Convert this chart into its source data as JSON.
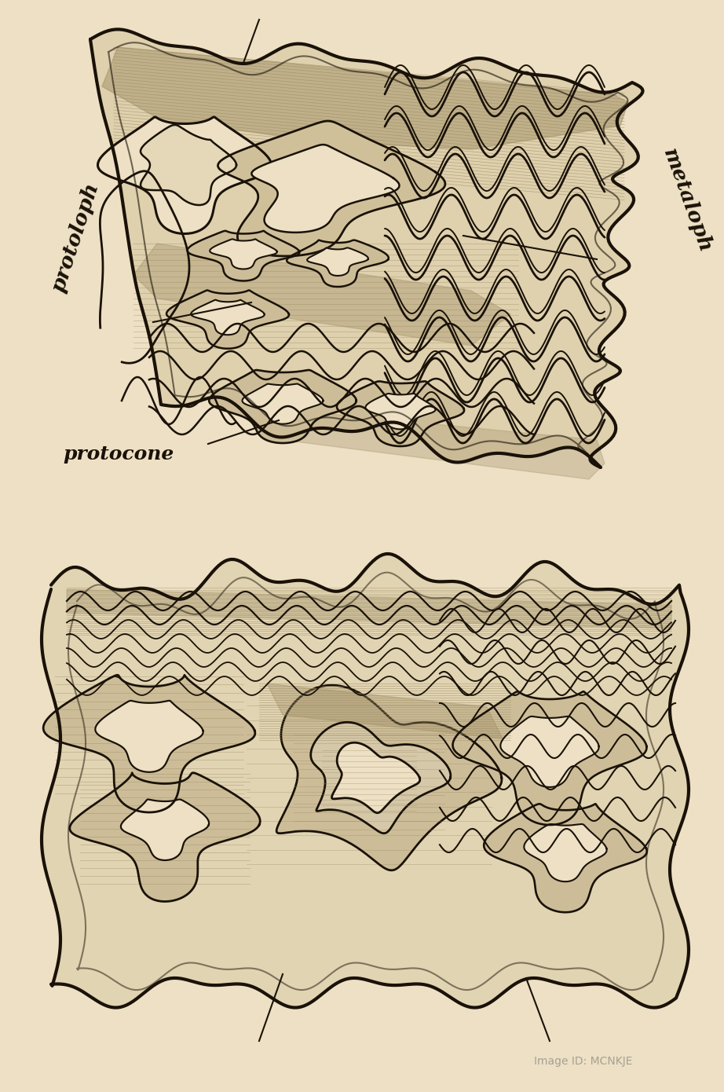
{
  "background_color": "#ede0c4",
  "line_color": "#1a1208",
  "fill_bg": "#e8d9b5",
  "fill_tooth": "#e5d8b8",
  "fill_dark_shading": "#9a8860",
  "label_protocone": "protocone",
  "label_protoloph": "protoloph",
  "label_metaloph": "metaloph",
  "figsize": [
    9.22,
    13.9
  ],
  "dpi": 100
}
